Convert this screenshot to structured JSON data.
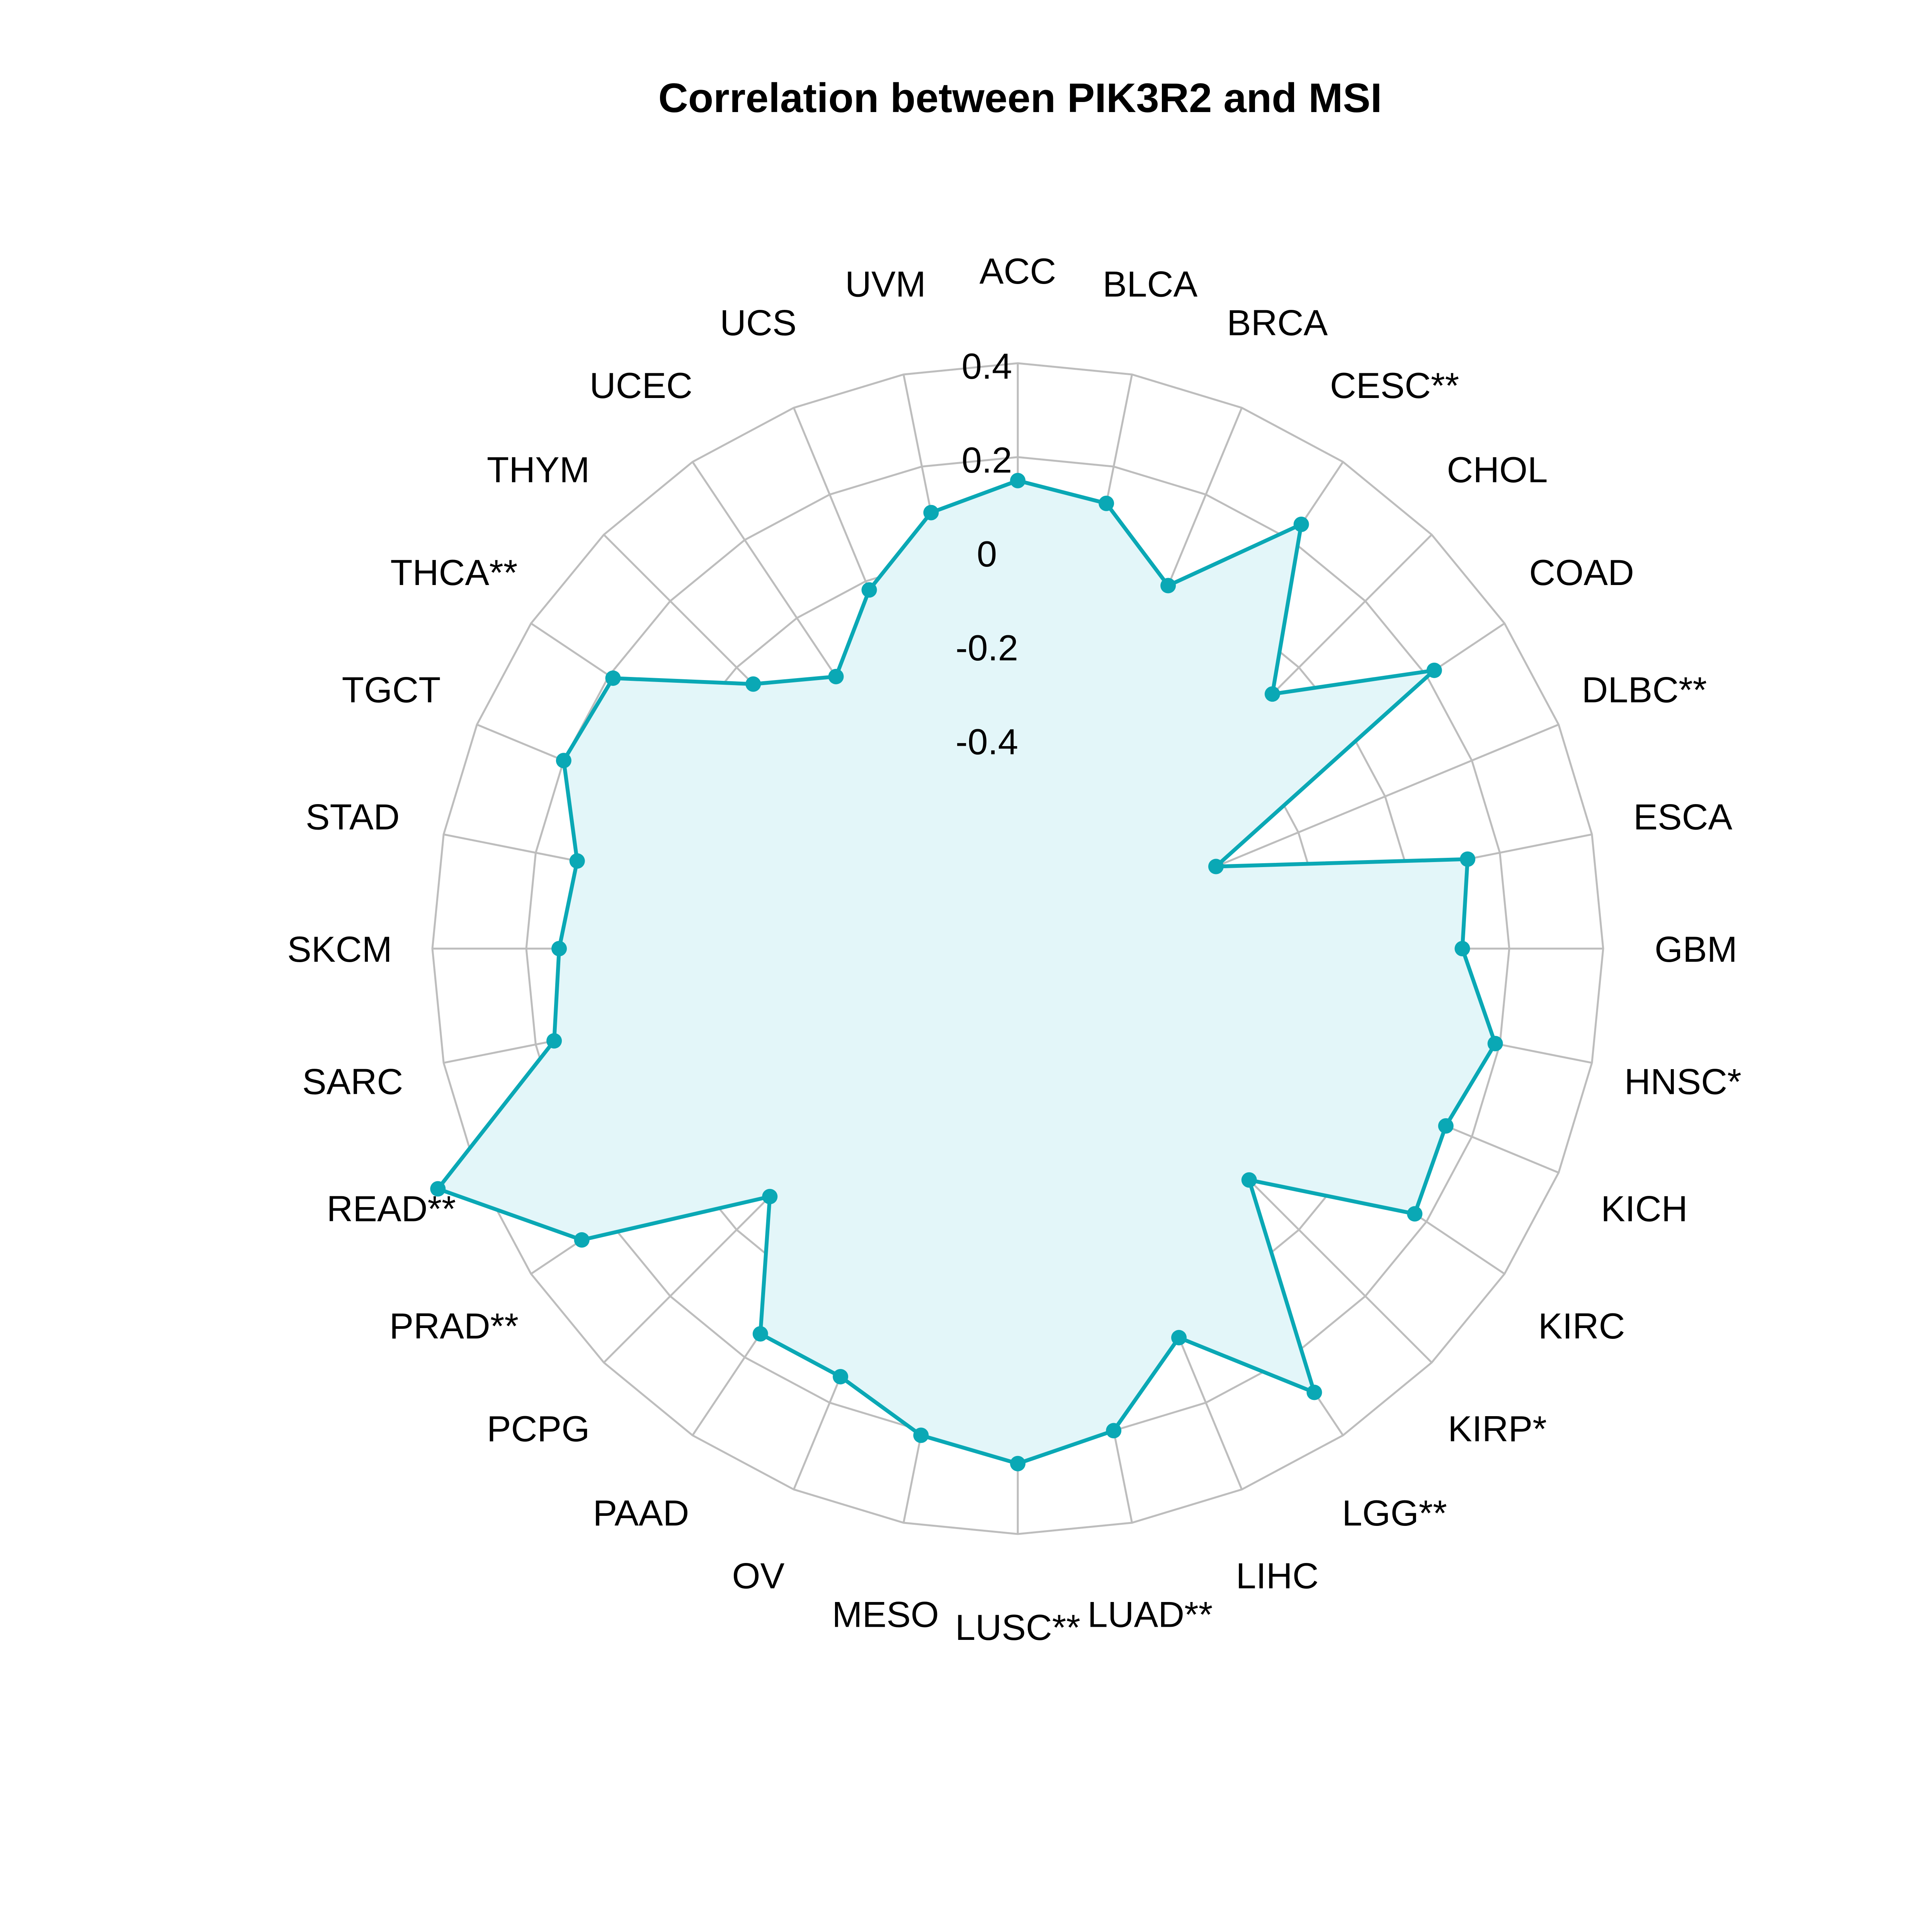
{
  "chart_data": {
    "type": "radar",
    "title": "Correlation between PIK3R2 and MSI",
    "categories": [
      "ACC",
      "BLCA",
      "BRCA",
      "CESC**",
      "CHOL",
      "COAD",
      "DLBC**",
      "ESCA",
      "GBM",
      "HNSC*",
      "KICH",
      "KIRC",
      "KIRP*",
      "LGG**",
      "LIHC",
      "LUAD**",
      "LUSC**",
      "MESO",
      "OV",
      "PAAD",
      "PCPG",
      "PRAD**",
      "READ**",
      "SARC",
      "SKCM",
      "STAD",
      "TGCT",
      "THCA**",
      "THYM",
      "UCEC",
      "UCS",
      "UVM"
    ],
    "series": [
      {
        "values": [
          0.15,
          0.12,
          -0.01,
          0.24,
          -0.08,
          0.22,
          -0.39,
          0.13,
          0.1,
          0.19,
          0.14,
          0.17,
          -0.15,
          0.29,
          0.05,
          0.2,
          0.25,
          0.21,
          0.14,
          0.14,
          -0.1,
          0.27,
          0.49,
          0.16,
          0.13,
          0.11,
          0.2,
          0.19,
          -0.05,
          -0.15,
          -0.02,
          0.1
        ],
        "color": "#0aa8b5"
      }
    ],
    "axis_ticks": [
      "-0.4",
      "-0.2",
      "0",
      "0.2",
      "0.4"
    ],
    "rlim": [
      -0.6,
      0.4
    ],
    "grid": true,
    "legend": "none",
    "colors": {
      "line": "#0aa8b5",
      "fill": "#e3f6f9",
      "grid": "#bdbdbd",
      "inner": "#e6f7f9"
    }
  }
}
